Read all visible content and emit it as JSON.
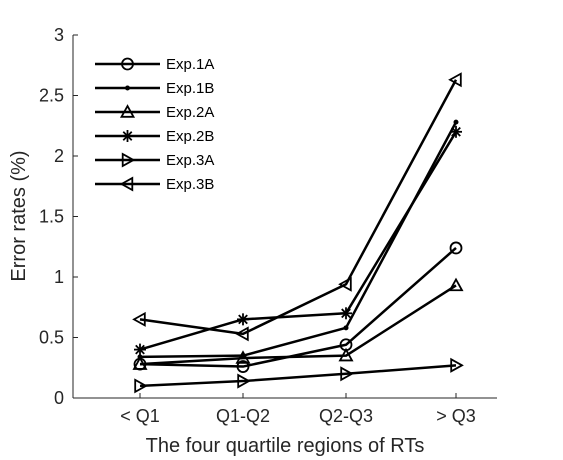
{
  "chart_data": {
    "type": "line",
    "title": "",
    "xlabel": "The four quartile regions of RTs",
    "ylabel": "Error rates (%)",
    "categories": [
      "< Q1",
      "Q1-Q2",
      "Q2-Q3",
      "> Q3"
    ],
    "ylim": [
      0,
      3
    ],
    "yticks": [
      0,
      0.5,
      1,
      1.5,
      2,
      2.5,
      3
    ],
    "ytick_labels": [
      "0",
      "0.5",
      "1",
      "1.5",
      "2",
      "2.5",
      "3"
    ],
    "grid": false,
    "legend_position": "top-left",
    "line_color": "#000000",
    "series": [
      {
        "name": "Exp.1A",
        "marker": "circle",
        "values": [
          0.28,
          0.26,
          0.44,
          1.24
        ]
      },
      {
        "name": "Exp.1B",
        "marker": "dot",
        "values": [
          0.34,
          0.35,
          0.58,
          2.28
        ]
      },
      {
        "name": "Exp.2A",
        "marker": "triangle-up",
        "values": [
          0.28,
          0.33,
          0.35,
          0.93
        ]
      },
      {
        "name": "Exp.2B",
        "marker": "asterisk",
        "values": [
          0.4,
          0.65,
          0.7,
          2.2
        ]
      },
      {
        "name": "Exp.3A",
        "marker": "triangle-right",
        "values": [
          0.1,
          0.14,
          0.2,
          0.27
        ]
      },
      {
        "name": "Exp.3B",
        "marker": "triangle-left",
        "values": [
          0.65,
          0.53,
          0.94,
          2.63
        ]
      }
    ]
  }
}
